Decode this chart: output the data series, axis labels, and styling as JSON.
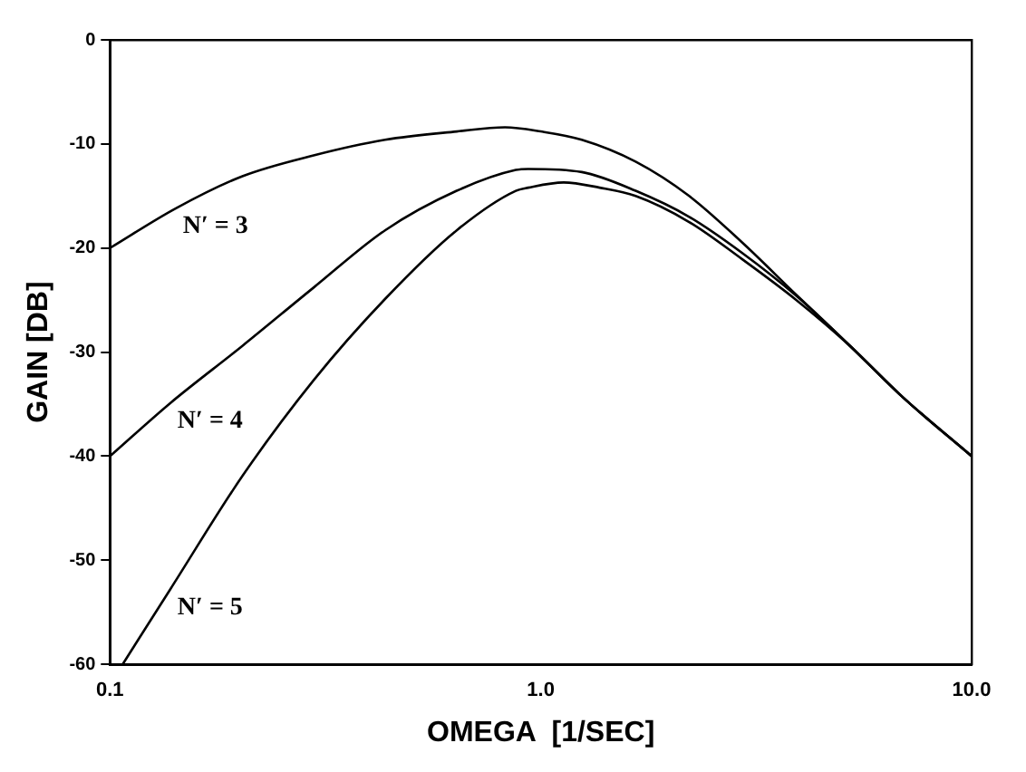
{
  "chart_data": {
    "type": "line",
    "xlabel": "OMEGA  [1/SEC]",
    "ylabel": "GAIN [DB]",
    "log": "x",
    "xlim": [
      0.1,
      10
    ],
    "ylim": [
      -60,
      0
    ],
    "xticks": [
      {
        "value": 0.1,
        "label": "0.1"
      },
      {
        "value": 1,
        "label": "1.0"
      },
      {
        "value": 10,
        "label": "10.0"
      }
    ],
    "yticks": [
      -60,
      -50,
      -40,
      -30,
      -20,
      -10,
      0
    ],
    "grid": false,
    "legend": false,
    "marker": "none",
    "line_style": "solid",
    "series": [
      {
        "name": "N′ = 3",
        "color": "#000000",
        "x": [
          0.1,
          0.142,
          0.203,
          0.297,
          0.435,
          0.638,
          0.826,
          1.0,
          1.245,
          1.66,
          2.21,
          2.94,
          3.92,
          5.22,
          6.95,
          10
        ],
        "values": [
          -20,
          -16.2,
          -13.1,
          -11.1,
          -9.6,
          -8.8,
          -8.4,
          -8.8,
          -9.6,
          -11.7,
          -15.0,
          -19.5,
          -24.5,
          -29.4,
          -34.4,
          -40
        ]
      },
      {
        "name": "N′ = 4",
        "color": "#000000",
        "x": [
          0.1,
          0.138,
          0.203,
          0.297,
          0.435,
          0.638,
          0.875,
          0.935,
          1.245,
          1.66,
          2.21,
          2.94,
          3.92,
          5.22,
          6.95,
          10
        ],
        "values": [
          -40,
          -34.9,
          -29.4,
          -23.8,
          -18.3,
          -14.5,
          -12.5,
          -12.4,
          -12.7,
          -14.5,
          -17.0,
          -20.5,
          -24.6,
          -29.4,
          -34.4,
          -40
        ]
      },
      {
        "name": "N′ = 5",
        "color": "#000000",
        "x": [
          0.107,
          0.138,
          0.203,
          0.297,
          0.435,
          0.638,
          0.875,
          0.935,
          1.13,
          1.37,
          1.66,
          2.21,
          2.94,
          3.92,
          5.22,
          6.95,
          10
        ],
        "values": [
          -60,
          -52.8,
          -41.9,
          -32.7,
          -24.9,
          -18.3,
          -14.5,
          -14.2,
          -13.7,
          -14.2,
          -15.0,
          -17.5,
          -21.1,
          -25.0,
          -29.4,
          -34.4,
          -40
        ]
      }
    ]
  }
}
